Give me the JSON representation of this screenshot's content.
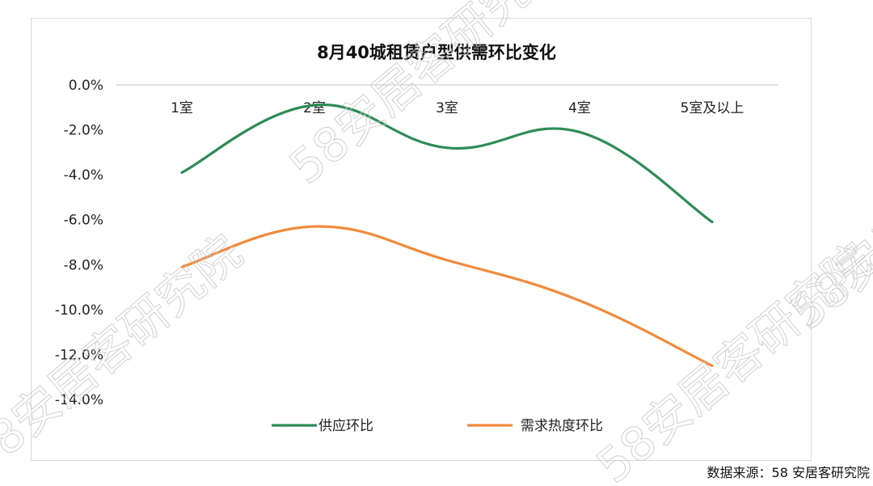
{
  "chart_data": {
    "type": "line",
    "title": "8月40城租赁户型供需环比变化",
    "categories": [
      "1室",
      "2室",
      "3室",
      "4室",
      "5室及以上"
    ],
    "y_ticks": [
      "0.0%",
      "-2.0%",
      "-4.0%",
      "-6.0%",
      "-8.0%",
      "-10.0%",
      "-12.0%",
      "-14.0%"
    ],
    "ylim": [
      -14,
      0
    ],
    "grid": false,
    "legend_position": "bottom",
    "series": [
      {
        "name": "供应环比",
        "color": "#2e8b57",
        "values": [
          -3.9,
          -0.9,
          -2.8,
          -2.1,
          -6.1
        ]
      },
      {
        "name": "需求热度环比",
        "color": "#f28a3b",
        "values": [
          -8.1,
          -6.3,
          -7.8,
          -9.6,
          -12.5
        ]
      }
    ]
  },
  "source_note": "数据来源：58 安居客研究院",
  "watermark_text": "58安居客研究院"
}
